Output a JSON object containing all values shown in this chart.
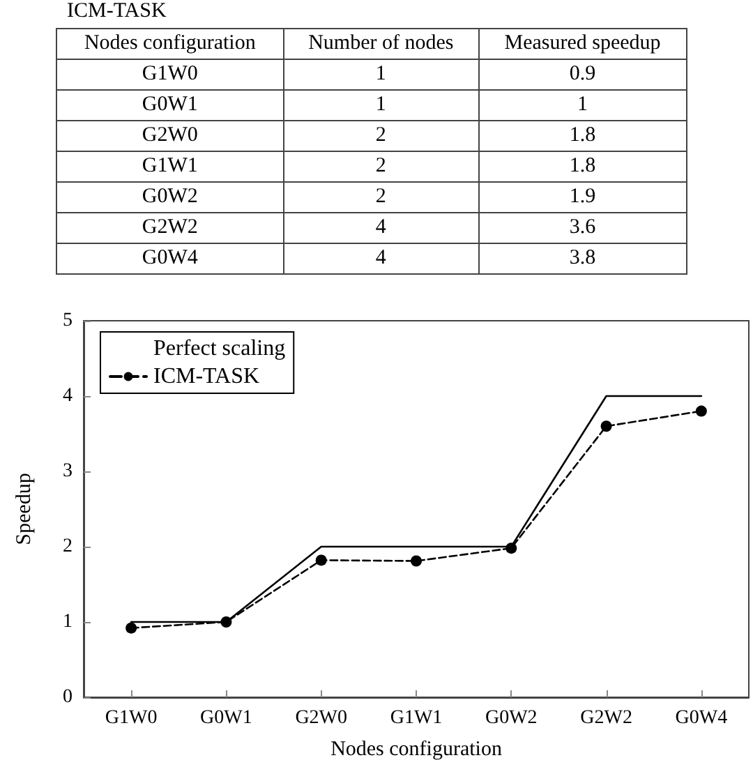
{
  "chart_data": [
    {
      "type": "other",
      "title": "ICM-TASK",
      "xlabel": "Nodes configuration",
      "categories": [
        "G1W0",
        "G0W1",
        "G2W0",
        "G1W1",
        "G0W2",
        "G2W2",
        "G0W4"
      ],
      "series": [
        {
          "name": "Number of nodes",
          "values": [
            1,
            1,
            2,
            2,
            2,
            4,
            4
          ]
        },
        {
          "name": "Measured speedup",
          "values": [
            0.9,
            1,
            1.8,
            1.8,
            1.9,
            3.6,
            3.8
          ]
        }
      ],
      "data_labels": true
    },
    {
      "type": "line",
      "xlabel": "Nodes configuration",
      "ylabel": "Speedup",
      "categories": [
        "G1W0",
        "G0W1",
        "G2W0",
        "G1W1",
        "G0W2",
        "G2W2",
        "G0W4"
      ],
      "series": [
        {
          "name": "Perfect scaling",
          "color": "#000000",
          "values": [
            1,
            1,
            2,
            2,
            2,
            4,
            4
          ],
          "marker": "none",
          "line_style": "solid"
        },
        {
          "name": "ICM-TASK",
          "color": "#000000",
          "values": [
            0.92,
            1,
            1.82,
            1.81,
            1.98,
            3.6,
            3.8
          ],
          "marker": "circle",
          "line_style": "dashed"
        }
      ],
      "ylim": [
        0,
        5
      ],
      "yticks": [
        0,
        1,
        2,
        3,
        4,
        5
      ],
      "grid": false,
      "legend": "top left"
    }
  ]
}
